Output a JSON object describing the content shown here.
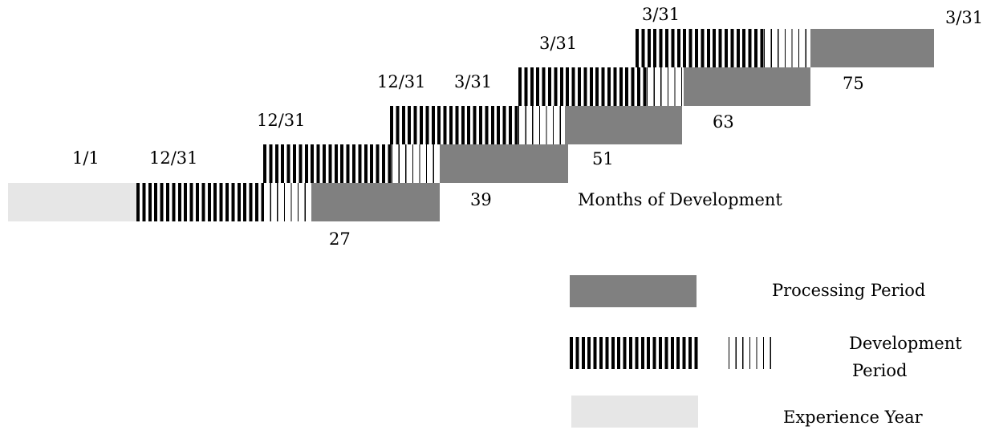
{
  "rows": [
    {
      "start_label": "1/1",
      "dev_end_label": "12/31",
      "months_label": "27"
    },
    {
      "dev_end_label": "12/31",
      "months_label": "39"
    },
    {
      "dev_end_label": "12/31",
      "months_label": "51"
    },
    {
      "dev_end_label": "12/31",
      "eval_label": "3/31",
      "months_label": "63"
    },
    {
      "eval_label": "3/31",
      "months_label": "75"
    }
  ],
  "top_labels": [
    "3/31",
    "3/31"
  ],
  "axis_caption": "Months of Development",
  "legend": {
    "processing": "Processing Period",
    "development_line1": "Development",
    "development_line2": "Period",
    "experience": "Experience Year"
  },
  "colors": {
    "experience": "#e6e6e6",
    "processing": "#808080",
    "development": "#000000"
  }
}
